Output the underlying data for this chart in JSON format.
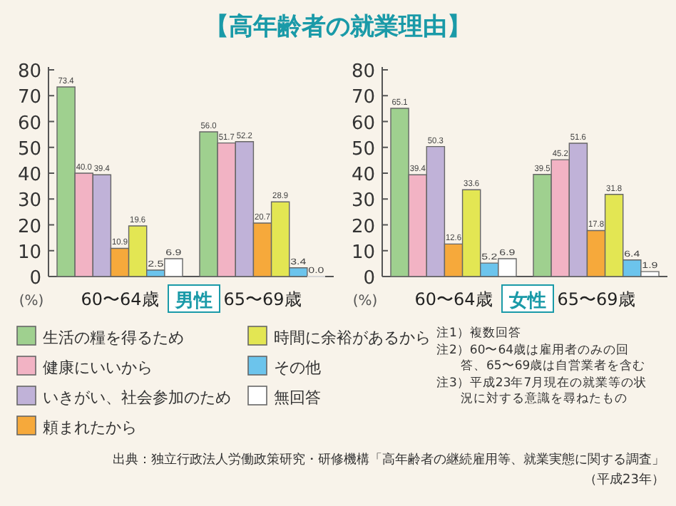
{
  "chart_data": [
    {
      "type": "bar",
      "title": "【高年齢者の就業理由】",
      "xlabel": "男性",
      "ylabel": "(%)",
      "categories": [
        "60〜64歳",
        "65〜69歳"
      ],
      "ylim": [
        0,
        80
      ],
      "yticks": [
        0,
        10,
        20,
        30,
        40,
        50,
        60,
        70,
        80
      ],
      "legend": "bottom",
      "series": [
        {
          "name": "生活の糧を得るため",
          "color": "#9fd08f",
          "values": [
            73.4,
            56.0
          ],
          "value_labels": [
            "73.4",
            "56.0"
          ]
        },
        {
          "name": "健康にいいから",
          "color": "#f2b3c4",
          "values": [
            40.0,
            51.7
          ],
          "value_labels": [
            "40.0",
            "51.7"
          ]
        },
        {
          "name": "いきがい、社会参加のため",
          "color": "#c0b2d8",
          "values": [
            39.4,
            52.2
          ],
          "value_labels": [
            "39.4",
            "52.2"
          ]
        },
        {
          "name": "頼まれたから",
          "color": "#f6a93b",
          "values": [
            10.9,
            20.7
          ],
          "value_labels": [
            "10.9",
            "20.7"
          ]
        },
        {
          "name": "時間に余裕があるから",
          "color": "#e3e653",
          "values": [
            19.6,
            28.9
          ],
          "value_labels": [
            "19.6",
            "28.9"
          ]
        },
        {
          "name": "その他",
          "color": "#6cc4ec",
          "values": [
            2.5,
            3.4
          ],
          "value_labels": [
            "2.5",
            "3.4"
          ]
        },
        {
          "name": "無回答",
          "color": "#ffffff",
          "values": [
            6.9,
            0.0
          ],
          "value_labels": [
            "6.9",
            "0.0"
          ]
        }
      ],
      "annotations": [
        "注1）複数回答",
        "注2）60〜64歳は雇用者のみの回答、65〜69歳は自営業者を含む",
        "注3）平成23年7月現在の就業等の状況に対する意識を尋ねたもの",
        "出典：独立行政法人労働政策研究・研修機構「高年齢者の継続雇用等、就業実態に関する調査」（平成23年）"
      ]
    },
    {
      "type": "bar",
      "xlabel": "女性",
      "ylabel": "(%)",
      "categories": [
        "60〜64歳",
        "65〜69歳"
      ],
      "ylim": [
        0,
        80
      ],
      "yticks": [
        0,
        10,
        20,
        30,
        40,
        50,
        60,
        70,
        80
      ],
      "series": [
        {
          "color": "#9fd08f",
          "values": [
            65.1,
            39.5
          ],
          "value_labels": [
            "65.1",
            "39.5"
          ]
        },
        {
          "color": "#f2b3c4",
          "values": [
            39.4,
            45.2
          ],
          "value_labels": [
            "39.4",
            "45.2"
          ]
        },
        {
          "color": "#c0b2d8",
          "values": [
            50.3,
            51.6
          ],
          "value_labels": [
            "50.3",
            "51.6"
          ]
        },
        {
          "color": "#f6a93b",
          "values": [
            12.6,
            17.8
          ],
          "value_labels": [
            "12.6",
            "17.8"
          ]
        },
        {
          "color": "#e3e653",
          "values": [
            33.6,
            31.8
          ],
          "value_labels": [
            "33.6",
            "31.8"
          ]
        },
        {
          "color": "#6cc4ec",
          "values": [
            5.2,
            6.4
          ],
          "value_labels": [
            "5.2",
            "6.4"
          ]
        },
        {
          "color": "#ffffff",
          "values": [
            6.9,
            1.9
          ],
          "value_labels": [
            "6.9",
            "1.9"
          ]
        }
      ]
    }
  ]
}
